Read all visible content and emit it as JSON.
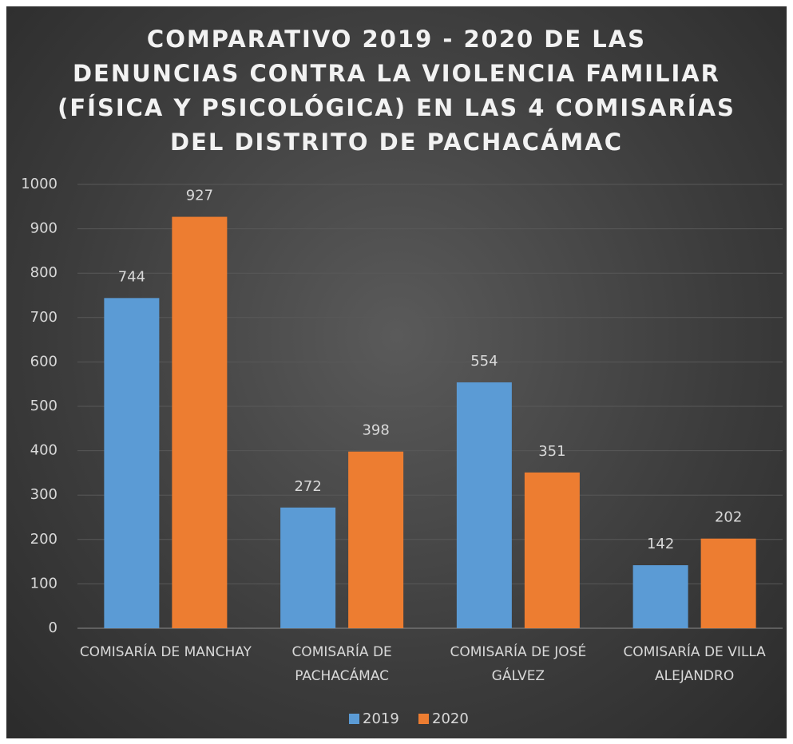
{
  "chart_data": {
    "type": "bar",
    "title": [
      "COMPARATIVO 2019 - 2020 DE LAS",
      "DENUNCIAS CONTRA LA VIOLENCIA FAMILIAR",
      "(FÍSICA Y PSICOLÓGICA) EN LAS 4 COMISARÍAS",
      "DEL DISTRITO DE PACHACÁMAC"
    ],
    "categories": [
      "COMISARÍA DE MANCHAY",
      "COMISARÍA DE PACHACÁMAC",
      "COMISARÍA DE JOSÉ GÁLVEZ",
      "COMISARÍA DE VILLA ALEJANDRO"
    ],
    "series": [
      {
        "name": "2019",
        "color": "#5b9bd5",
        "values": [
          744,
          272,
          554,
          142
        ]
      },
      {
        "name": "2020",
        "color": "#ed7d31",
        "values": [
          927,
          398,
          351,
          202
        ]
      }
    ],
    "ylim": [
      0,
      1000
    ],
    "yticks": [
      0,
      100,
      200,
      300,
      400,
      500,
      600,
      700,
      800,
      900,
      1000
    ],
    "grid": true,
    "legend": "bottom"
  }
}
